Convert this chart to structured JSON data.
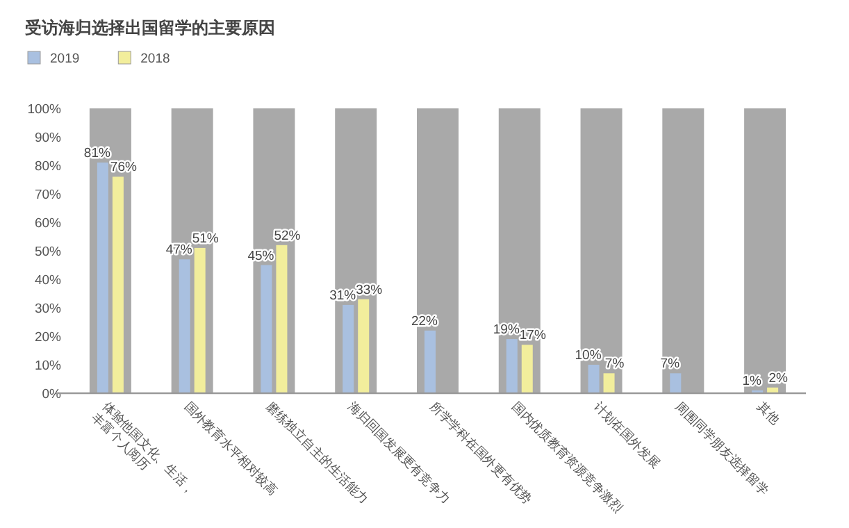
{
  "chart_data": {
    "type": "bar",
    "title": "受访海归选择出国留学的主要原因",
    "categories": [
      "体验他国文化、生活，\n丰富个人阅历",
      "国外教育水平相对较高",
      "磨练独立自主的生活能力",
      "海归回国发展更有竞争力",
      "所学学科在国外更有优势",
      "国内优质教育资源竞争激烈",
      "计划在国外发展",
      "周围同学朋友选择留学",
      "其他"
    ],
    "series": [
      {
        "color": "#a9a9a9",
        "values": [
          100,
          100,
          100,
          100,
          100,
          100,
          100,
          100,
          100
        ]
      },
      {
        "name": "2019",
        "color": "#a9c0e0",
        "values": [
          81,
          47,
          45,
          31,
          22,
          19,
          10,
          7,
          1
        ],
        "value_labels": [
          "81%",
          "47%",
          "45%",
          "31%",
          "22%",
          "19%",
          "10%",
          "7%",
          "1%"
        ]
      },
      {
        "name": "2018",
        "color": "#f2ee9c",
        "values": [
          76,
          51,
          52,
          33,
          null,
          17,
          7,
          null,
          2
        ],
        "value_labels": [
          "76%",
          "51%",
          "52%",
          "33%",
          null,
          "17%",
          "7%",
          null,
          "2%"
        ]
      }
    ],
    "ylim": [
      0,
      100
    ],
    "yticks": [
      {
        "value": 0,
        "label": "0%"
      },
      {
        "value": 10,
        "label": "10%"
      },
      {
        "value": 20,
        "label": "20%"
      },
      {
        "value": 30,
        "label": "30%"
      },
      {
        "value": 40,
        "label": "40%"
      },
      {
        "value": 50,
        "label": "50%"
      },
      {
        "value": 60,
        "label": "60%"
      },
      {
        "value": 70,
        "label": "70%"
      },
      {
        "value": 80,
        "label": "80%"
      },
      {
        "value": 90,
        "label": "90%"
      },
      {
        "value": 100,
        "label": "100%"
      }
    ],
    "legend": "top left",
    "grid": false
  }
}
